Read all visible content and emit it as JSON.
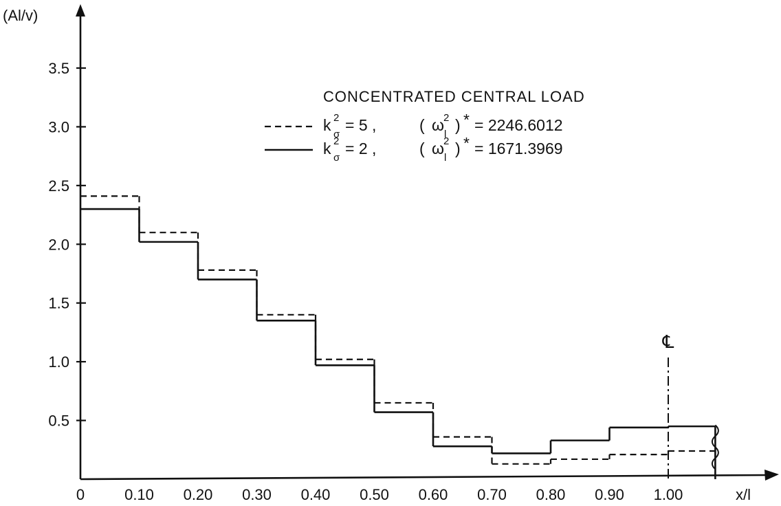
{
  "chart_data": {
    "type": "line",
    "step": true,
    "title": "CONCENTRATED CENTRAL LOAD",
    "ylabel": "(Al/v)",
    "xlabel": "x/l",
    "xlim": [
      0,
      1.1
    ],
    "ylim": [
      0,
      3.5
    ],
    "x_ticks": [
      {
        "value": 0.0,
        "label": "0"
      },
      {
        "value": 0.1,
        "label": "0.10"
      },
      {
        "value": 0.2,
        "label": "0.20"
      },
      {
        "value": 0.3,
        "label": "0.30"
      },
      {
        "value": 0.4,
        "label": "0.40"
      },
      {
        "value": 0.5,
        "label": "0.50"
      },
      {
        "value": 0.6,
        "label": "0.60"
      },
      {
        "value": 0.7,
        "label": "0.70"
      },
      {
        "value": 0.8,
        "label": "0.80"
      },
      {
        "value": 0.9,
        "label": "0.90"
      },
      {
        "value": 1.0,
        "label": "1.00"
      }
    ],
    "y_ticks": [
      {
        "value": 0.5,
        "label": "0.5"
      },
      {
        "value": 1.0,
        "label": "1.0"
      },
      {
        "value": 1.5,
        "label": "1.5"
      },
      {
        "value": 2.0,
        "label": "2.0"
      },
      {
        "value": 2.5,
        "label": "2.5"
      },
      {
        "value": 3.0,
        "label": "3.0"
      },
      {
        "value": 3.5,
        "label": "3.5"
      }
    ],
    "grid": false,
    "legend_position": "top-right",
    "segment_edges": [
      0,
      0.1,
      0.2,
      0.3,
      0.4,
      0.5,
      0.6,
      0.7,
      0.8,
      0.9,
      1.0,
      1.08
    ],
    "series": [
      {
        "style": "dashed",
        "values": [
          2.41,
          2.1,
          1.78,
          1.4,
          1.02,
          0.65,
          0.36,
          0.13,
          0.17,
          0.21,
          0.24
        ]
      },
      {
        "style": "solid",
        "values": [
          2.3,
          2.02,
          1.7,
          1.35,
          0.97,
          0.57,
          0.28,
          0.22,
          0.33,
          0.44,
          0.45
        ]
      }
    ],
    "legend": [
      {
        "style": "dashed",
        "k_sym": "k",
        "k_sup": "2",
        "k_sub": "σ",
        "k_val": "= 5  ,",
        "w_open": "(",
        "w_sym": "ω",
        "w_sup": "2",
        "w_sub": "l",
        "w_close": ")",
        "star": "*",
        "w_val": "=  2246.6012"
      },
      {
        "style": "solid",
        "k_sym": "k",
        "k_sup": "2",
        "k_sub": "σ",
        "k_val": "= 2  ,",
        "w_open": "(",
        "w_sym": "ω",
        "w_sup": "2",
        "w_sub": "l",
        "w_close": ")",
        "star": "*",
        "w_val": "=  1671.3969"
      }
    ],
    "centerline": {
      "x": 1.0,
      "label": "℄"
    }
  }
}
